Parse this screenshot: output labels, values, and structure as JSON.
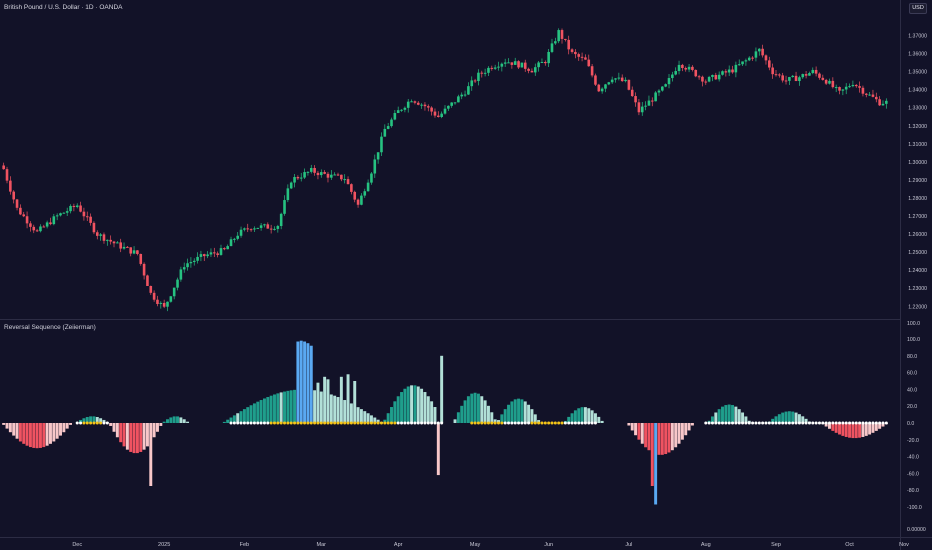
{
  "header": {
    "symbol_title": "British Pound / U.S. Dollar · 1D · OANDA",
    "currency_badge": "USD",
    "indicator_title": "Reversal Sequence (Zeiierman)"
  },
  "colors": {
    "background": "#121228",
    "candle_up": "#26c281",
    "candle_down": "#f05361",
    "hist_teal": "#1f9e8c",
    "hist_light_teal": "#b2e0d8",
    "hist_blue": "#5aa9f2",
    "hist_red": "#f05361",
    "hist_pink": "#f8c7c9",
    "dot_white": "#ffffff",
    "dot_yellow": "#f5c518",
    "axis_text": "#c9c9d6"
  },
  "chart_data": [
    {
      "type": "candlestick",
      "title": "British Pound / U.S. Dollar · 1D · OANDA",
      "ylabel": "USD",
      "ylim": [
        1.2135,
        1.3775
      ],
      "y_ticks": [
        "1.37000",
        "1.36000",
        "1.35000",
        "1.34000",
        "1.33000",
        "1.32000",
        "1.31000",
        "1.30000",
        "1.29000",
        "1.28000",
        "1.27000",
        "1.26000",
        "1.25000",
        "1.24000",
        "1.23000",
        "1.22000"
      ],
      "x_ticks": [
        "Dec",
        "2025",
        "Feb",
        "Mar",
        "Apr",
        "May",
        "Jun",
        "Jul",
        "Aug",
        "Sep",
        "Oct",
        "Nov"
      ],
      "closes_anchor": [
        [
          0,
          1.296
        ],
        [
          4,
          1.274
        ],
        [
          10,
          1.261
        ],
        [
          16,
          1.27
        ],
        [
          22,
          1.276
        ],
        [
          28,
          1.26
        ],
        [
          34,
          1.254
        ],
        [
          40,
          1.249
        ],
        [
          44,
          1.227
        ],
        [
          48,
          1.219
        ],
        [
          54,
          1.243
        ],
        [
          60,
          1.248
        ],
        [
          66,
          1.251
        ],
        [
          70,
          1.26
        ],
        [
          74,
          1.264
        ],
        [
          80,
          1.264
        ],
        [
          82,
          1.265
        ],
        [
          86,
          1.29
        ],
        [
          92,
          1.295
        ],
        [
          98,
          1.292
        ],
        [
          102,
          1.291
        ],
        [
          106,
          1.276
        ],
        [
          110,
          1.295
        ],
        [
          114,
          1.318
        ],
        [
          118,
          1.328
        ],
        [
          122,
          1.335
        ],
        [
          126,
          1.331
        ],
        [
          130,
          1.325
        ],
        [
          134,
          1.332
        ],
        [
          138,
          1.339
        ],
        [
          142,
          1.348
        ],
        [
          146,
          1.353
        ],
        [
          150,
          1.356
        ],
        [
          154,
          1.354
        ],
        [
          158,
          1.351
        ],
        [
          162,
          1.356
        ],
        [
          166,
          1.372
        ],
        [
          170,
          1.36
        ],
        [
          174,
          1.356
        ],
        [
          178,
          1.34
        ],
        [
          182,
          1.347
        ],
        [
          186,
          1.344
        ],
        [
          190,
          1.328
        ],
        [
          194,
          1.335
        ],
        [
          198,
          1.342
        ],
        [
          202,
          1.355
        ],
        [
          206,
          1.35
        ],
        [
          210,
          1.345
        ],
        [
          214,
          1.348
        ],
        [
          218,
          1.351
        ],
        [
          222,
          1.356
        ],
        [
          226,
          1.362
        ],
        [
          230,
          1.35
        ],
        [
          234,
          1.345
        ],
        [
          238,
          1.347
        ],
        [
          242,
          1.35
        ],
        [
          246,
          1.345
        ],
        [
          250,
          1.338
        ],
        [
          254,
          1.344
        ],
        [
          258,
          1.338
        ],
        [
          262,
          1.333
        ]
      ]
    },
    {
      "type": "bar",
      "title": "Reversal Sequence (Zeiierman)",
      "ylim": [
        -105,
        105
      ],
      "y_ticks": [
        "100.0",
        "80.0",
        "60.0",
        "40.0",
        "20.0",
        "0.0",
        "-20.0",
        "-40.0",
        "-60.0",
        "-80.0",
        "-100.0"
      ],
      "top_label": "100.0",
      "bottom_label": "0.00000",
      "legend": [],
      "segments": [
        {
          "type": "bear",
          "start": 0,
          "length": 21,
          "peak": -30
        },
        {
          "type": "bull",
          "start": 22,
          "length": 10,
          "peak": 8
        },
        {
          "type": "bear",
          "start": 32,
          "length": 16,
          "peak": -36
        },
        {
          "type": "bull",
          "start": 48,
          "length": 8,
          "peak": 8
        },
        {
          "type": "bull",
          "start": 66,
          "length": 48,
          "peak": 40
        },
        {
          "type": "bull",
          "start": 114,
          "length": 18,
          "peak": 45
        },
        {
          "type": "bull",
          "start": 135,
          "length": 13,
          "peak": 36
        },
        {
          "type": "bull",
          "start": 148,
          "length": 13,
          "peak": 29
        },
        {
          "type": "bull",
          "start": 168,
          "length": 12,
          "peak": 19
        },
        {
          "type": "bear",
          "start": 187,
          "length": 20,
          "peak": -38
        },
        {
          "type": "bull",
          "start": 211,
          "length": 13,
          "peak": 22
        },
        {
          "type": "bull",
          "start": 229,
          "length": 13,
          "peak": 14
        },
        {
          "type": "bear",
          "start": 245,
          "length": 20,
          "peak": -18
        }
      ],
      "spikes": [
        {
          "type": "bear",
          "index": 44,
          "value": -75
        },
        {
          "type": "bull",
          "index": 88,
          "value": 62
        },
        {
          "type": "bull",
          "index": 91,
          "value": 58
        },
        {
          "type": "bull",
          "index": 94,
          "value": 48
        },
        {
          "type": "bull",
          "index": 96,
          "value": 55
        },
        {
          "type": "bull",
          "index": 97,
          "value": 52
        },
        {
          "type": "bull",
          "index": 101,
          "value": 55
        },
        {
          "type": "bull",
          "index": 103,
          "value": 58
        },
        {
          "type": "bull",
          "index": 105,
          "value": 50
        },
        {
          "type": "bull",
          "index": 131,
          "value": 80
        },
        {
          "type": "bear",
          "index": 130,
          "value": -62
        },
        {
          "type": "bear",
          "index": 194,
          "value": -75
        }
      ],
      "blue_bars": [
        {
          "index": 88,
          "value": 97
        },
        {
          "index": 89,
          "value": 98
        },
        {
          "index": 90,
          "value": 97
        },
        {
          "index": 91,
          "value": 95
        },
        {
          "index": 92,
          "value": 92
        },
        {
          "index": 195,
          "value": -97
        }
      ]
    }
  ]
}
